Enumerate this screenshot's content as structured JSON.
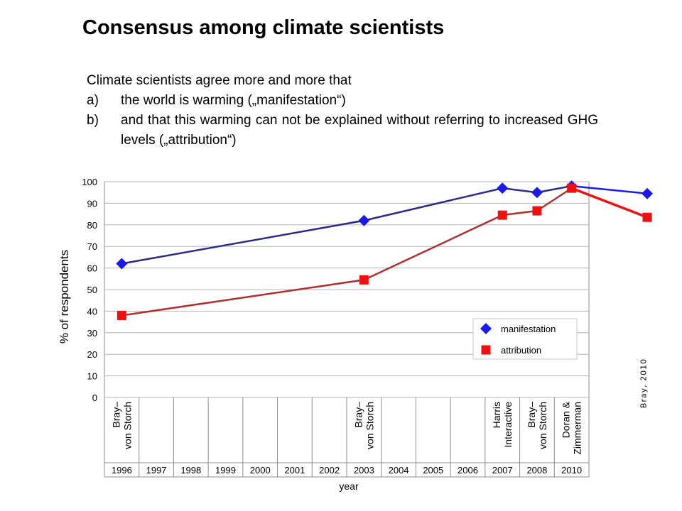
{
  "slide": {
    "title": "Consensus among climate scientists",
    "intro": "Climate scientists agree more and more that",
    "points": [
      {
        "marker": "a)",
        "text": "the world is warming („manifestation“)"
      },
      {
        "marker": "b)",
        "text": "and that this warming can not be explained without referring to increased GHG levels („attribution“)"
      }
    ],
    "credit": "Bray, 2010"
  },
  "chart_data": {
    "type": "line",
    "title": "",
    "xlabel": "year",
    "ylabel": "% of respondents",
    "ylim": [
      0,
      100
    ],
    "yticks": [
      0,
      10,
      20,
      30,
      40,
      50,
      60,
      70,
      80,
      90,
      100
    ],
    "grid": true,
    "categories": [
      "1996",
      "1997",
      "1998",
      "1999",
      "2000",
      "2001",
      "2002",
      "2003",
      "2004",
      "2005",
      "2006",
      "2007",
      "2008",
      "2010"
    ],
    "survey_labels": [
      {
        "year": "1996",
        "label": [
          "Bray–",
          "von Storch"
        ]
      },
      {
        "year": "2003",
        "label": [
          "Bray–",
          "von Storch"
        ]
      },
      {
        "year": "2007",
        "label": [
          "Harris",
          "Interactive"
        ]
      },
      {
        "year": "2008",
        "label": [
          "Bray–",
          "von Storch"
        ]
      },
      {
        "year": "2010",
        "label": [
          "Doran &",
          "Zimmerman"
        ]
      }
    ],
    "legend_position": "lower-right",
    "series": [
      {
        "name": "manifestation",
        "marker": "diamond",
        "color": "#1a1aee",
        "line_color": "#2b2b8c",
        "points": [
          {
            "x": "1996",
            "y": 62
          },
          {
            "x": "2003",
            "y": 82
          },
          {
            "x": "2007",
            "y": 97
          },
          {
            "x": "2008",
            "y": 95
          },
          {
            "x": "2010",
            "y": 98
          }
        ]
      },
      {
        "name": "attribution",
        "marker": "square",
        "color": "#ee1111",
        "line_color": "#b03030",
        "points": [
          {
            "x": "1996",
            "y": 38
          },
          {
            "x": "2003",
            "y": 54.5
          },
          {
            "x": "2007",
            "y": 84.5
          },
          {
            "x": "2008",
            "y": 86.5
          },
          {
            "x": "2010",
            "y": 97
          }
        ]
      }
    ],
    "extension": {
      "manifestation": {
        "y": 94.5,
        "color": "#1a1aee"
      },
      "attribution": {
        "y": 83.5,
        "color": "#ee1111"
      }
    }
  }
}
